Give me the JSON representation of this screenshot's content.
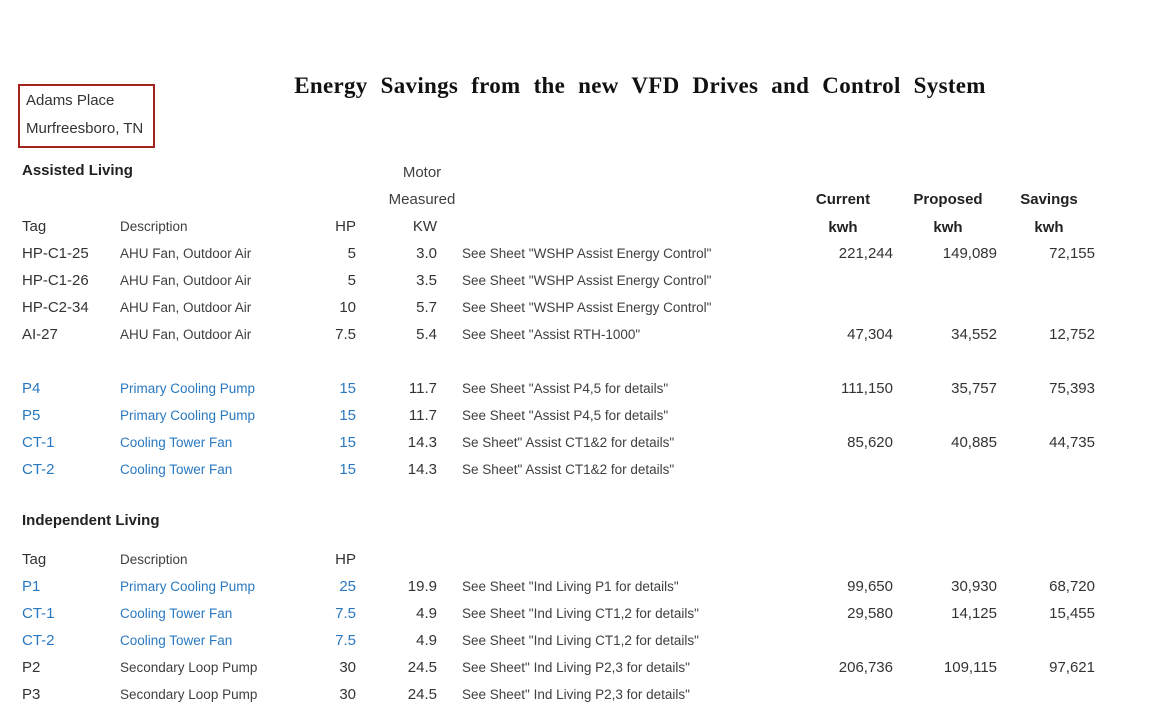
{
  "page": {
    "title": "Energy Savings from the new VFD Drives and Control System",
    "location": {
      "line1": "Adams Place",
      "line2": "Murfreesboro, TN"
    },
    "colors": {
      "accent_blue": "#2a78c0",
      "box_border_red": "#a3241c"
    }
  },
  "columns": {
    "tag": "Tag",
    "description": "Description",
    "hp": "HP",
    "kw": "KW",
    "motor": "Motor",
    "measured": "Measured",
    "current": "Current",
    "proposed": "Proposed",
    "savings": "Savings",
    "kwh": "kwh"
  },
  "sections": [
    {
      "name": "Assisted Living",
      "rows": [
        {
          "tag": "HP-C1-25",
          "description": "AHU Fan, Outdoor Air",
          "hp": "5",
          "kw": "3.0",
          "note": "See Sheet \"WSHP Assist Energy Control\"",
          "current": "221,244",
          "proposed": "149,089",
          "savings": "72,155",
          "style": "black"
        },
        {
          "tag": "HP-C1-26",
          "description": "AHU Fan, Outdoor Air",
          "hp": "5",
          "kw": "3.5",
          "note": "See Sheet \"WSHP Assist Energy Control\"",
          "current": "",
          "proposed": "",
          "savings": "",
          "style": "black"
        },
        {
          "tag": "HP-C2-34",
          "description": "AHU Fan, Outdoor Air",
          "hp": "10",
          "kw": "5.7",
          "note": "See Sheet \"WSHP Assist Energy Control\"",
          "current": "",
          "proposed": "",
          "savings": "",
          "style": "black"
        },
        {
          "tag": "AI-27",
          "description": "AHU Fan, Outdoor Air",
          "hp": "7.5",
          "kw": "5.4",
          "note": "See Sheet \"Assist RTH-1000\"",
          "current": "47,304",
          "proposed": "34,552",
          "savings": "12,752",
          "style": "black"
        },
        {
          "type": "spacer"
        },
        {
          "tag": "P4",
          "description": "Primary Cooling Pump",
          "hp": "15",
          "kw": "11.7",
          "note": "See Sheet \"Assist P4,5 for details\"",
          "current": "111,150",
          "proposed": "35,757",
          "savings": "75,393",
          "style": "blue"
        },
        {
          "tag": "P5",
          "description": "Primary Cooling Pump",
          "hp": "15",
          "kw": "11.7",
          "note": "See Sheet \"Assist P4,5 for details\"",
          "current": "",
          "proposed": "",
          "savings": "",
          "style": "blue"
        },
        {
          "tag": "CT-1",
          "description": "Cooling Tower Fan",
          "hp": "15",
          "kw": "14.3",
          "note": "Se Sheet\" Assist CT1&2 for details\"",
          "current": "85,620",
          "proposed": "40,885",
          "savings": "44,735",
          "style": "blue"
        },
        {
          "tag": "CT-2",
          "description": "Cooling Tower Fan",
          "hp": "15",
          "kw": "14.3",
          "note": "Se Sheet\" Assist CT1&2 for details\"",
          "current": "",
          "proposed": "",
          "savings": "",
          "style": "blue"
        }
      ]
    },
    {
      "name": "Independent Living",
      "rows": [
        {
          "tag": "P1",
          "description": "Primary Cooling Pump",
          "hp": "25",
          "kw": "19.9",
          "note": "See Sheet \"Ind Living P1 for details\"",
          "current": "99,650",
          "proposed": "30,930",
          "savings": "68,720",
          "style": "blue"
        },
        {
          "tag": "CT-1",
          "description": "Cooling Tower Fan",
          "hp": "7.5",
          "kw": "4.9",
          "note": "See Sheet \"Ind Living CT1,2 for details\"",
          "current": "29,580",
          "proposed": "14,125",
          "savings": "15,455",
          "style": "blue"
        },
        {
          "tag": "CT-2",
          "description": "Cooling Tower Fan",
          "hp": "7.5",
          "kw": "4.9",
          "note": "See Sheet \"Ind Living CT1,2 for details\"",
          "current": "",
          "proposed": "",
          "savings": "",
          "style": "blue"
        },
        {
          "tag": "P2",
          "description": "Secondary Loop Pump",
          "hp": "30",
          "kw": "24.5",
          "note": "See Sheet\" Ind Living P2,3 for details\"",
          "current": "206,736",
          "proposed": "109,115",
          "savings": "97,621",
          "style": "black"
        },
        {
          "tag": "P3",
          "description": "Secondary Loop Pump",
          "hp": "30",
          "kw": "24.5",
          "note": "See Sheet\" Ind Living P2,3 for details\"",
          "current": "",
          "proposed": "",
          "savings": "",
          "style": "black"
        }
      ]
    }
  ]
}
